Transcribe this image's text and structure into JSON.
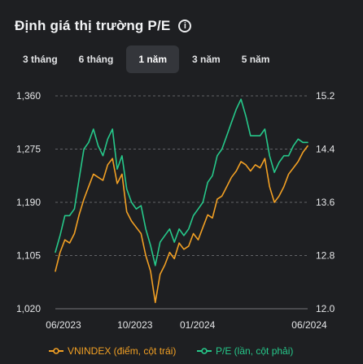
{
  "header": {
    "title": "Định giá thị trường P/E",
    "info_icon": "info-circle-icon"
  },
  "tabs": [
    {
      "label": "3 tháng",
      "active": false
    },
    {
      "label": "6 tháng",
      "active": false
    },
    {
      "label": "1 năm",
      "active": true
    },
    {
      "label": "3 năm",
      "active": false
    },
    {
      "label": "5 năm",
      "active": false
    }
  ],
  "colors": {
    "background": "#1e1f22",
    "vnindex": "#f2a024",
    "pe": "#26c88a",
    "grid": "#9a9ca0",
    "text": "#e4e5e7"
  },
  "chart_data": {
    "type": "line",
    "x": [
      "2023-06-06",
      "2023-06-13",
      "2023-06-20",
      "2023-06-27",
      "2023-07-04",
      "2023-07-11",
      "2023-07-18",
      "2023-07-25",
      "2023-08-01",
      "2023-08-08",
      "2023-08-15",
      "2023-08-22",
      "2023-08-29",
      "2023-09-05",
      "2023-09-12",
      "2023-09-19",
      "2023-09-26",
      "2023-10-03",
      "2023-10-10",
      "2023-10-17",
      "2023-10-24",
      "2023-10-31",
      "2023-11-07",
      "2023-11-14",
      "2023-11-21",
      "2023-11-28",
      "2023-12-05",
      "2023-12-12",
      "2023-12-19",
      "2023-12-26",
      "2024-01-02",
      "2024-01-09",
      "2024-01-16",
      "2024-01-23",
      "2024-01-30",
      "2024-02-06",
      "2024-02-13",
      "2024-02-20",
      "2024-02-27",
      "2024-03-05",
      "2024-03-12",
      "2024-03-19",
      "2024-03-26",
      "2024-04-02",
      "2024-04-09",
      "2024-04-16",
      "2024-04-23",
      "2024-04-30",
      "2024-05-07",
      "2024-05-14",
      "2024-05-21",
      "2024-05-28",
      "2024-06-04",
      "2024-06-11"
    ],
    "x_ticks": [
      "06/2023",
      "10/2023",
      "01/2024",
      "06/2024"
    ],
    "series": [
      {
        "name": "VNINDEX (điểm, cột trái)",
        "axis": "left",
        "values": [
          1080,
          1110,
          1130,
          1125,
          1140,
          1170,
          1195,
          1215,
          1235,
          1230,
          1225,
          1250,
          1260,
          1220,
          1235,
          1175,
          1160,
          1150,
          1140,
          1105,
          1080,
          1030,
          1075,
          1090,
          1110,
          1100,
          1125,
          1115,
          1120,
          1140,
          1130,
          1150,
          1170,
          1165,
          1195,
          1200,
          1215,
          1230,
          1240,
          1255,
          1250,
          1240,
          1250,
          1245,
          1260,
          1215,
          1190,
          1200,
          1215,
          1235,
          1245,
          1255,
          1270,
          1280
        ]
      },
      {
        "name": "P/E (lần, cột phải)",
        "axis": "right",
        "values": [
          12.85,
          13.1,
          13.4,
          13.4,
          13.5,
          13.95,
          14.4,
          14.5,
          14.7,
          14.45,
          14.3,
          14.55,
          14.7,
          14.1,
          14.3,
          13.8,
          13.6,
          13.5,
          13.55,
          13.2,
          12.95,
          12.65,
          13.0,
          13.1,
          13.2,
          13.0,
          13.2,
          13.1,
          13.2,
          13.4,
          13.5,
          13.6,
          13.9,
          14.0,
          14.3,
          14.4,
          14.6,
          14.8,
          15.0,
          15.15,
          14.9,
          14.6,
          14.6,
          14.6,
          14.7,
          14.3,
          14.05,
          14.2,
          14.3,
          14.3,
          14.45,
          14.55,
          14.5,
          14.5
        ]
      }
    ],
    "y_left": {
      "ticks": [
        1020,
        1105,
        1190,
        1275,
        1360
      ],
      "ylim": [
        1020,
        1360
      ]
    },
    "y_right": {
      "ticks": [
        12.0,
        12.8,
        13.6,
        14.4,
        15.2
      ],
      "ylim": [
        12.0,
        15.2
      ]
    },
    "y_left_tick_labels": [
      "1,020",
      "1,105",
      "1,190",
      "1,275",
      "1,360"
    ],
    "y_right_tick_labels": [
      "12.0",
      "12.8",
      "13.6",
      "14.4",
      "15.2"
    ],
    "grid": true,
    "legend": "bottom"
  }
}
